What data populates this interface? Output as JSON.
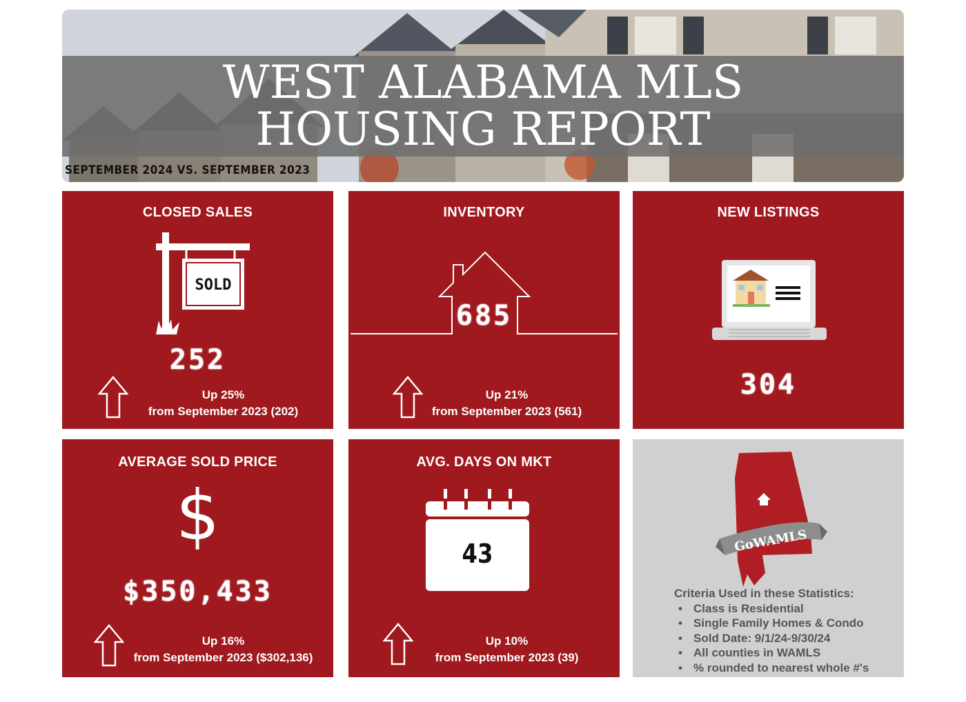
{
  "header": {
    "title_line1": "WEST ALABAMA MLS",
    "title_line2": "HOUSING REPORT",
    "subtitle": "SEPTEMBER 2024 VS. SEPTEMBER 2023"
  },
  "cards": {
    "closed_sales": {
      "title": "CLOSED SALES",
      "sign_text": "SOLD",
      "value": "252",
      "change_line1": "Up 25%",
      "change_line2": "from September 2023 (202)"
    },
    "inventory": {
      "title": "INVENTORY",
      "value": "685",
      "change_line1": "Up 21%",
      "change_line2": "from September 2023 (561)"
    },
    "new_listings": {
      "title": "NEW LISTINGS",
      "value": "304"
    },
    "avg_sold_price": {
      "title": "AVERAGE SOLD PRICE",
      "symbol": "$",
      "value": "$350,433",
      "change_line1": "Up 16%",
      "change_line2": "from September 2023 ($302,136)"
    },
    "avg_days": {
      "title": "AVG. DAYS ON MKT",
      "value": "43",
      "change_line1": "Up 10%",
      "change_line2": "from September 2023 (39)"
    },
    "criteria": {
      "logo_text": "GoWAMLS",
      "heading": "Criteria Used in these Statistics:",
      "items": [
        "Class is Residential",
        "Single Family Homes & Condo",
        "Sold Date: 9/1/24-9/30/24",
        "All counties in WAMLS",
        "% rounded to nearest whole #'s"
      ]
    }
  },
  "colors": {
    "card_red": "#a0191e",
    "card_grey": "#d0d0d0",
    "title_bar": "#6e6e6e"
  }
}
